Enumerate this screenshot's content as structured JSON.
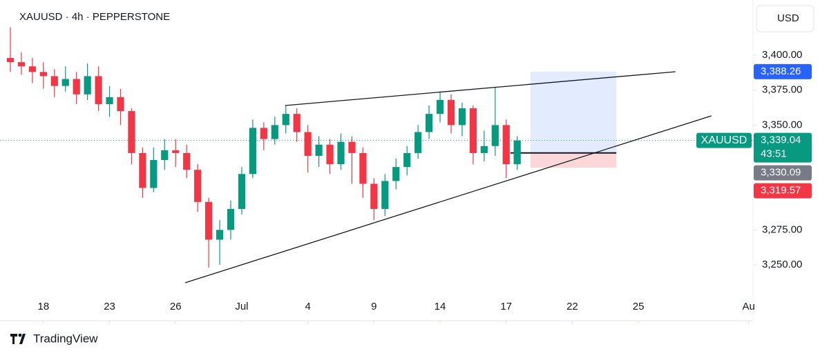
{
  "header": {
    "symbol_line": "XAUUSD · 4h · PEPPERSTONE",
    "currency": "USD"
  },
  "chart_data": {
    "type": "candlestick",
    "x": [
      -1.5,
      -1,
      -0.5,
      0,
      0.5,
      1,
      1.5,
      2,
      2.5,
      3,
      3.5,
      4,
      4.5,
      5,
      5.5,
      6,
      6.5,
      7,
      7.5,
      8,
      8.5,
      9,
      9.5,
      10,
      10.5,
      11,
      11.5,
      12,
      12.5,
      13,
      13.5,
      14,
      14.5,
      15,
      15.5,
      16,
      16.5,
      17,
      17.5,
      18,
      18.5,
      19,
      19.5,
      20,
      20.5,
      21,
      21.5
    ],
    "open": [
      3398,
      3395,
      3392,
      3388,
      3385,
      3378,
      3383,
      3372,
      3385,
      3365,
      3370,
      3360,
      3330,
      3305,
      3325,
      3332,
      3330,
      3318,
      3295,
      3268,
      3275,
      3290,
      3315,
      3348,
      3340,
      3350,
      3358,
      3345,
      3328,
      3336,
      3322,
      3338,
      3330,
      3308,
      3290,
      3310,
      3320,
      3330,
      3345,
      3358,
      3368,
      3350,
      3362,
      3330,
      3335,
      3350,
      3322
    ],
    "high": [
      3420,
      3402,
      3398,
      3395,
      3390,
      3392,
      3388,
      3394,
      3392,
      3378,
      3376,
      3362,
      3334,
      3334,
      3340,
      3340,
      3336,
      3322,
      3298,
      3282,
      3296,
      3320,
      3354,
      3352,
      3356,
      3364,
      3362,
      3350,
      3342,
      3340,
      3344,
      3342,
      3334,
      3312,
      3315,
      3326,
      3335,
      3350,
      3364,
      3374,
      3372,
      3366,
      3364,
      3346,
      3377,
      3354,
      3342
    ],
    "low": [
      3388,
      3386,
      3380,
      3376,
      3370,
      3374,
      3365,
      3368,
      3360,
      3356,
      3350,
      3322,
      3298,
      3302,
      3318,
      3320,
      3312,
      3288,
      3248,
      3250,
      3268,
      3286,
      3312,
      3332,
      3336,
      3344,
      3338,
      3316,
      3320,
      3315,
      3318,
      3308,
      3298,
      3282,
      3285,
      3304,
      3314,
      3326,
      3340,
      3352,
      3344,
      3342,
      3322,
      3324,
      3328,
      3312,
      3318
    ],
    "close": [
      3395,
      3392,
      3388,
      3385,
      3378,
      3383,
      3372,
      3385,
      3365,
      3370,
      3360,
      3330,
      3305,
      3325,
      3332,
      3330,
      3318,
      3295,
      3268,
      3275,
      3290,
      3315,
      3348,
      3340,
      3350,
      3358,
      3345,
      3328,
      3336,
      3322,
      3338,
      3330,
      3308,
      3290,
      3310,
      3320,
      3330,
      3345,
      3358,
      3368,
      3350,
      3362,
      3330,
      3335,
      3350,
      3322,
      3339.04
    ],
    "up_color": "#089981",
    "down_color": "#f23645",
    "xlim": [
      -1.97,
      32.2
    ],
    "xticks": [
      {
        "value": 0,
        "label": "18"
      },
      {
        "value": 3,
        "label": "23"
      },
      {
        "value": 6,
        "label": "26"
      },
      {
        "value": 9,
        "label": "Jul"
      },
      {
        "value": 12,
        "label": "4"
      },
      {
        "value": 15,
        "label": "9"
      },
      {
        "value": 18,
        "label": "14"
      },
      {
        "value": 21,
        "label": "17"
      },
      {
        "value": 24,
        "label": "22"
      },
      {
        "value": 27,
        "label": "25"
      },
      {
        "value": 32,
        "label": "Au"
      }
    ],
    "ylim": [
      3228.3,
      3439.5
    ],
    "yticks": [
      {
        "value": 3250,
        "label": "3,250.00"
      },
      {
        "value": 3275,
        "label": "3,275.00"
      },
      {
        "value": 3350,
        "label": "3,350.00"
      },
      {
        "value": 3375,
        "label": "3,375.00"
      },
      {
        "value": 3400,
        "label": "3,400.00"
      }
    ],
    "grid": false,
    "trendlines": [
      {
        "x": [
          10.97,
          28.68
        ],
        "y": [
          3364,
          3388.2
        ]
      },
      {
        "x": [
          6.43,
          30.31
        ],
        "y": [
          3237.2,
          3356.6
        ]
      }
    ],
    "position": {
      "x": [
        22.1,
        26.0
      ],
      "target": {
        "value": 3388.26,
        "label": "3,388.26",
        "color": "#2962ff"
      },
      "entry": {
        "value": 3330.09,
        "label": "3,330.09",
        "color": "#787b86"
      },
      "stop": {
        "value": 3319.57,
        "label": "3,319.57",
        "color": "#f23645"
      }
    },
    "last_price": {
      "name": "XAUUSD",
      "value": 3339.04,
      "label": "3,339.04",
      "countdown": "43:51",
      "color": "#089981"
    }
  },
  "footer": {
    "brand": "TradingView"
  }
}
